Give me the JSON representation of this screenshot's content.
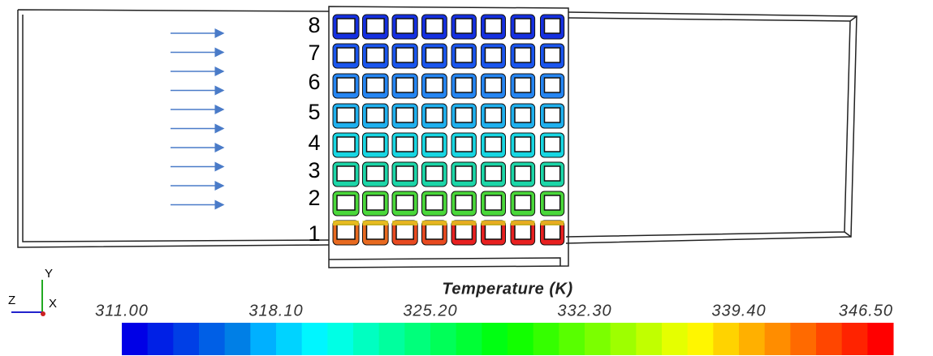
{
  "row_labels": [
    "8",
    "7",
    "6",
    "5",
    "4",
    "3",
    "2",
    "1"
  ],
  "axes": {
    "y": "Y",
    "z": "Z",
    "x": "X"
  },
  "colorbar": {
    "title": "Temperature (K)",
    "ticks": [
      "311.00",
      "318.10",
      "325.20",
      "332.30",
      "339.40",
      "346.50"
    ]
  }
}
